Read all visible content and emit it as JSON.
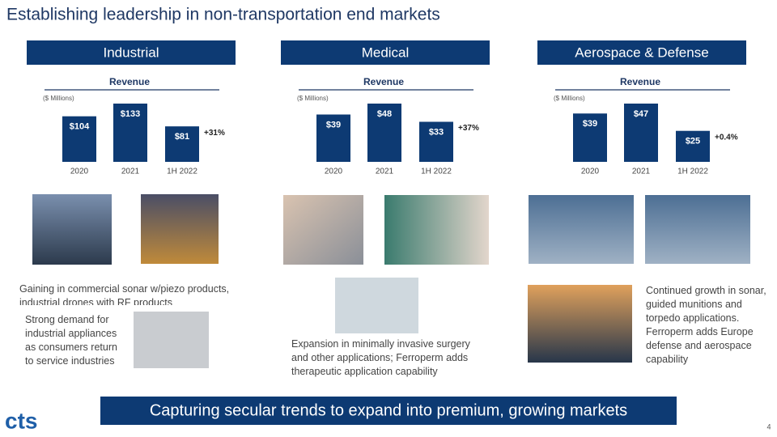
{
  "title": "Establishing leadership in non-transportation end markets",
  "segments": [
    {
      "name": "Industrial",
      "notes": [
        "Gaining in commercial sonar w/piezo products, industrial drones with RF products",
        "Strong demand for industrial appliances as consumers return to service industries"
      ]
    },
    {
      "name": "Medical",
      "notes": [
        "Expansion in minimally invasive surgery and other applications; Ferroperm adds therapeutic application capability"
      ]
    },
    {
      "name": "Aerospace & Defense",
      "notes": [
        "Continued growth in sonar, guided munitions and torpedo applications. Ferroperm adds Europe defense and aerospace capability"
      ]
    }
  ],
  "chart_data": [
    {
      "type": "bar",
      "title": "Revenue",
      "subtitle": "($ Millions)",
      "categories": [
        "2020",
        "2021",
        "1H 2022"
      ],
      "values": [
        104,
        133,
        81
      ],
      "value_labels": [
        "$104",
        "$133",
        "$81"
      ],
      "annotation": "+31%",
      "color": "#0d3a73"
    },
    {
      "type": "bar",
      "title": "Revenue",
      "subtitle": "($ Millions)",
      "categories": [
        "2020",
        "2021",
        "1H 2022"
      ],
      "values": [
        39,
        48,
        33
      ],
      "value_labels": [
        "$39",
        "$48",
        "$33"
      ],
      "annotation": "+37%",
      "color": "#0d3a73"
    },
    {
      "type": "bar",
      "title": "Revenue",
      "subtitle": "($ Millions)",
      "categories": [
        "2020",
        "2021",
        "1H 2022"
      ],
      "values": [
        39,
        47,
        25
      ],
      "value_labels": [
        "$39",
        "$47",
        "$25"
      ],
      "annotation": "+0.4%",
      "color": "#0d3a73"
    }
  ],
  "banner": "Capturing secular trends to expand into premium, growing markets",
  "logo": "cts",
  "page_number": "4"
}
